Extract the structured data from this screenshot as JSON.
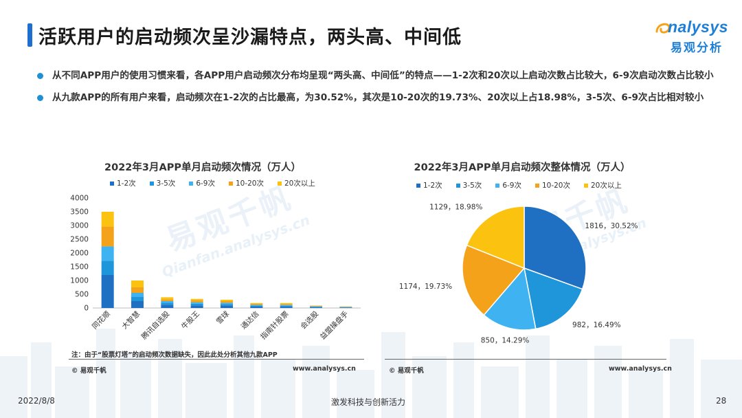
{
  "header": {
    "title": "活跃用户的启动频次呈沙漏特点，两头高、中间低",
    "logo_word": "nalysys",
    "logo_cn": "易观分析"
  },
  "bullets": [
    "从不同APP用户的使用习惯来看，各APP用户启动频次分布均呈现“两头高、中间低”的特点——1-2次和20次以上启动次数占比较大，6-9次启动次数占比较小",
    "从九款APP的所有用户来看，启动频次在1-2次的占比最高，为30.52%，其次是10-20次的19.73%、20次以上占18.98%，3-5次、6-9次占比相对较小"
  ],
  "colors": {
    "1-2次": "#1f6fc2",
    "3-5次": "#1e96d9",
    "6-9次": "#3fb3f1",
    "10-20次": "#f5a21b",
    "20次以上": "#fbc20f"
  },
  "watermark": {
    "cn": "易观千帆",
    "url": "Qianfan.analysys.cn"
  },
  "chart_data": [
    {
      "type": "bar",
      "stacked": true,
      "title": "2022年3月APP单月启动频次情况（万人）",
      "categories": [
        "同花顺",
        "大智慧",
        "腾讯自选股",
        "牛股王",
        "雪球",
        "通达信",
        "指南针股票",
        "会选股",
        "益盟操盘手"
      ],
      "series": [
        {
          "name": "1-2次",
          "values": [
            1200,
            250,
            120,
            95,
            85,
            50,
            48,
            28,
            18
          ]
        },
        {
          "name": "3-5次",
          "values": [
            520,
            150,
            70,
            60,
            55,
            35,
            33,
            18,
            12
          ]
        },
        {
          "name": "6-9次",
          "values": [
            520,
            150,
            60,
            55,
            50,
            30,
            30,
            15,
            10
          ]
        },
        {
          "name": "10-20次",
          "values": [
            720,
            200,
            70,
            65,
            60,
            35,
            35,
            18,
            12
          ]
        },
        {
          "name": "20次以上",
          "values": [
            540,
            250,
            70,
            55,
            50,
            30,
            34,
            11,
            8
          ]
        }
      ],
      "ylim": [
        0,
        4000
      ],
      "yticks": [
        0,
        500,
        1000,
        1500,
        2000,
        2500,
        3000,
        3500,
        4000
      ],
      "grid": false,
      "legend": "top",
      "note": "注：由于“股票灯塔”的启动频次数据缺失，因此此处分析其他九款APP",
      "source_left": "© 易观千帆",
      "source_right": "www.analysys.cn"
    },
    {
      "type": "pie",
      "title": "2022年3月APP单月启动频次整体情况（万人）",
      "slices": [
        {
          "name": "1-2次",
          "value": 1816,
          "label": "1816，30.52%"
        },
        {
          "name": "3-5次",
          "value": 982,
          "label": "982，16.49%"
        },
        {
          "name": "6-9次",
          "value": 850,
          "label": "850，14.29%"
        },
        {
          "name": "10-20次",
          "value": 1174,
          "label": "1174，19.73%"
        },
        {
          "name": "20次以上",
          "value": 1129,
          "label": "1129，18.98%"
        }
      ],
      "legend": "top",
      "source_left": "© 易观千帆",
      "source_right": "www.analysys.cn"
    }
  ],
  "footer": {
    "date": "2022/8/8",
    "slogan": "激发科技与创新活力",
    "page": "28"
  }
}
